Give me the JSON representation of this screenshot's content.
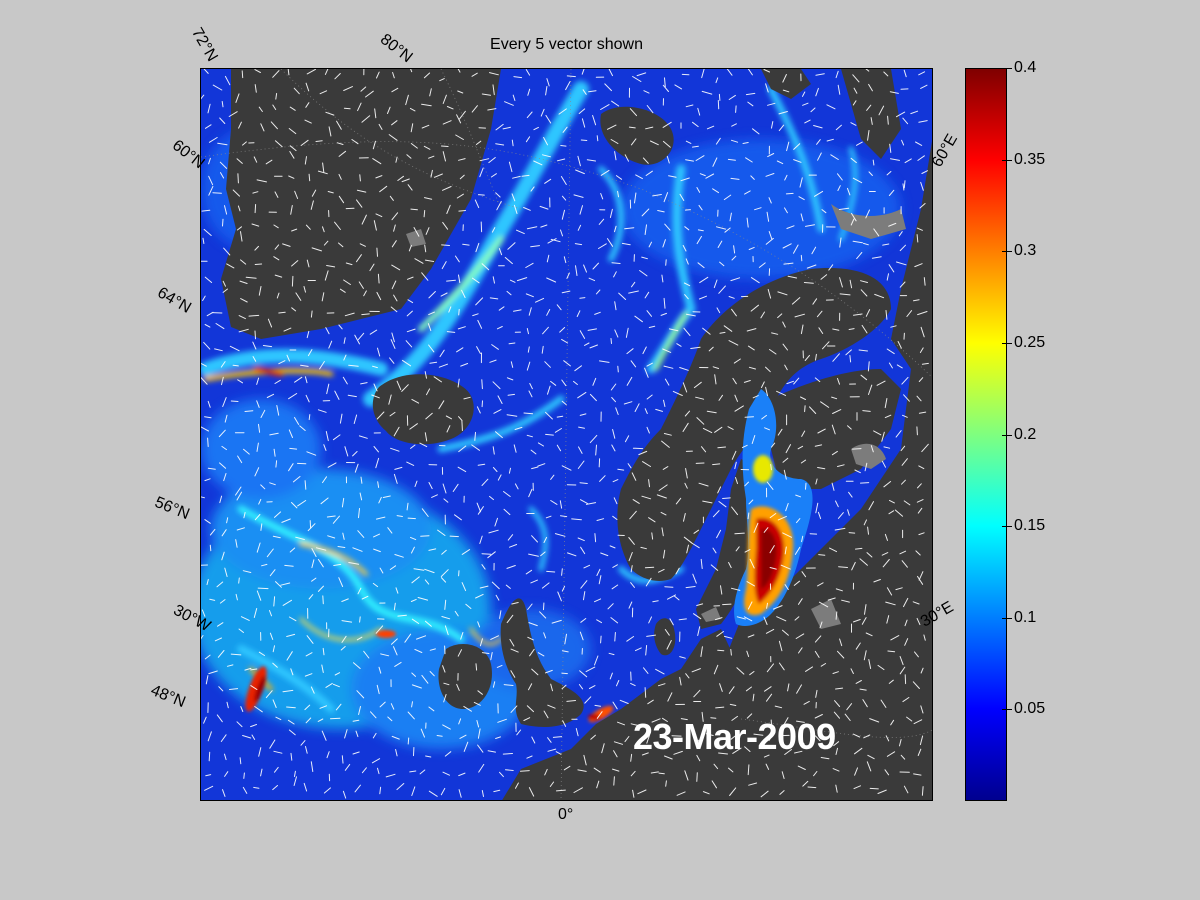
{
  "title": "Every 5 vector shown",
  "date_label": "23-Mar-2009",
  "map": {
    "region": "North Atlantic, Nordic Seas and Baltic",
    "colors": {
      "land": "#3a3a3a",
      "ice": "#7c7c7c",
      "vectors": "#ffffff"
    },
    "graticule_labels": {
      "lat_72": "72°N",
      "lat_80": "80°N",
      "lat_60": "60°N",
      "lat_64": "64°N",
      "lat_56": "56°N",
      "lat_48": "48°N",
      "lon_30w": "30°W",
      "lon_0": "0°",
      "lon_30e": "30°E",
      "lon_60e": "60°E"
    }
  },
  "colorbar": {
    "colormap": "jet",
    "min": 0,
    "max": 0.4,
    "tick_labels": [
      "0.4",
      "0.35",
      "0.3",
      "0.25",
      "0.2",
      "0.15",
      "0.1",
      "0.05"
    ],
    "tick_values": [
      0.4,
      0.35,
      0.3,
      0.25,
      0.2,
      0.15,
      0.1,
      0.05
    ]
  }
}
